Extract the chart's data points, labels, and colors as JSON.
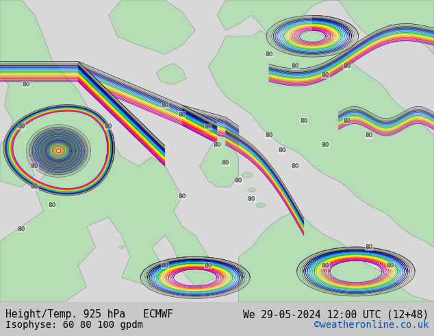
{
  "title_left": "Height/Temp. 925 hPa   ECMWF",
  "title_right": "We 29-05-2024 12:00 UTC (12+48)",
  "subtitle_left": "Isophyse: 60 80 100 gpdm",
  "subtitle_right": "©weatheronline.co.uk",
  "subtitle_right_color": "#0055aa",
  "bg_color": "#b4ddb4",
  "ocean_color": "#d8d8d8",
  "land_color": "#b4ddb4",
  "coast_color": "#888888",
  "text_color": "#000000",
  "bottom_bar_color": "#c8c8c8",
  "fig_width": 6.34,
  "fig_height": 4.9,
  "dpi": 100,
  "font_size_title": 10.5,
  "font_size_subtitle": 10,
  "contour_colors": [
    "#000000",
    "#444444",
    "#666666",
    "#888888",
    "#aaaaaa",
    "#800080",
    "#cc00cc",
    "#ff00ff",
    "#cc0000",
    "#ff0000",
    "#ff4400",
    "#ff8800",
    "#ffaa00",
    "#ffff00",
    "#00aa00",
    "#00cc44",
    "#00cccc",
    "#00aaff",
    "#0044ff",
    "#0000cc",
    "#000088"
  ],
  "jet_colors": [
    "#800080",
    "#aa00aa",
    "#ff00ff",
    "#ff0000",
    "#ff4400",
    "#ff8800",
    "#ffcc00",
    "#ffff00",
    "#aacc00",
    "#00aa00",
    "#00ccaa",
    "#00aaff",
    "#0066ff",
    "#0000ff",
    "#000099",
    "#000000",
    "#555555",
    "#888888",
    "#aaaaaa",
    "#333333"
  ]
}
